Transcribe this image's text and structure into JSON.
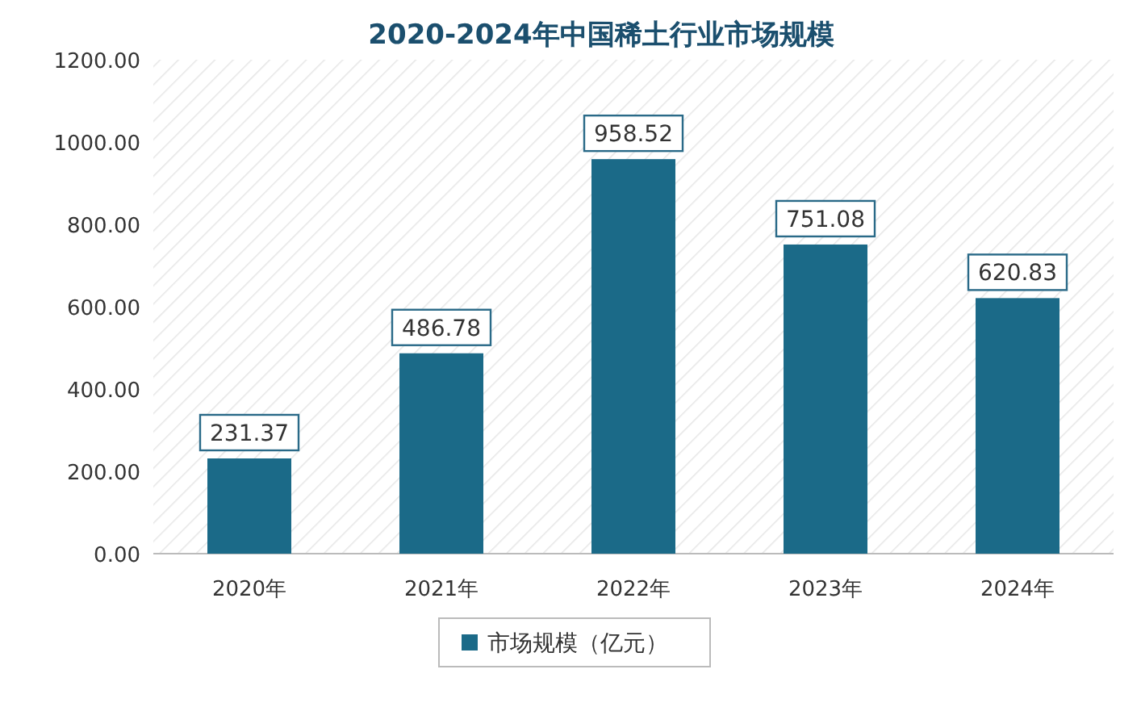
{
  "chart_data": {
    "type": "bar",
    "title": "2020-2024年中国稀土行业市场规模",
    "categories": [
      "2020年",
      "2021年",
      "2022年",
      "2023年",
      "2024年"
    ],
    "series": [
      {
        "name": "市场规模（亿元）",
        "color": "#1b6a88",
        "values": [
          231.37,
          486.78,
          958.52,
          751.08,
          620.83
        ]
      }
    ],
    "ylim": [
      0,
      1200
    ],
    "yticks": [
      {
        "value": 0,
        "label": "0.00"
      },
      {
        "value": 200,
        "label": "200.00"
      },
      {
        "value": 400,
        "label": "400.00"
      },
      {
        "value": 600,
        "label": "600.00"
      },
      {
        "value": 800,
        "label": "800.00"
      },
      {
        "value": 1000,
        "label": "1000.00"
      },
      {
        "value": 1200,
        "label": "1200.00"
      }
    ],
    "data_labels": true,
    "legend": "bottom"
  }
}
